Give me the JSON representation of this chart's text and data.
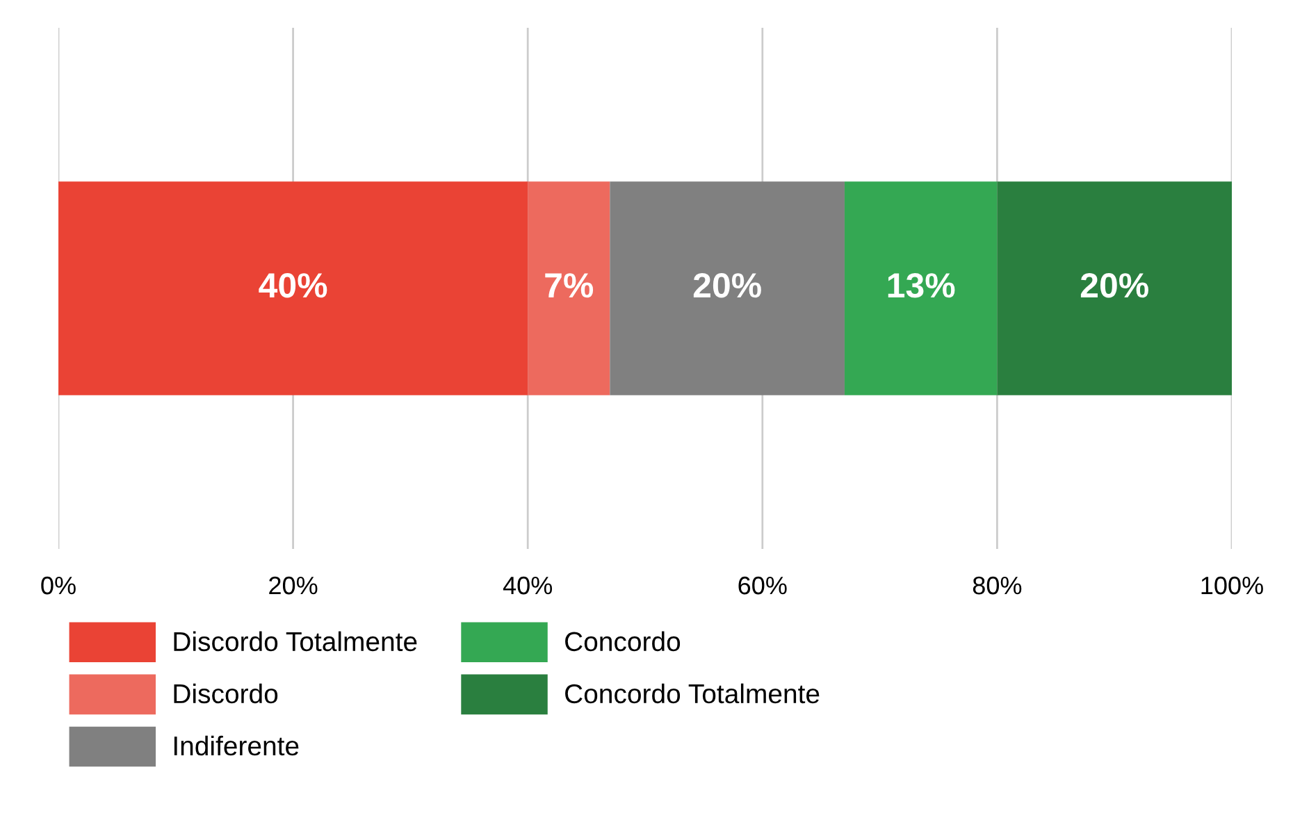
{
  "chart_data": {
    "type": "bar",
    "orientation": "horizontal",
    "stacked": true,
    "categories": [
      null
    ],
    "series": [
      {
        "name": "Discordo Totalmente",
        "color": "#ea4335",
        "values": [
          40
        ],
        "value_labels": [
          "40%"
        ]
      },
      {
        "name": "Discordo",
        "color": "#ed6a5e",
        "values": [
          7
        ],
        "value_labels": [
          "7%"
        ]
      },
      {
        "name": "Indiferente",
        "color": "#808080",
        "values": [
          20
        ],
        "value_labels": [
          "20%"
        ]
      },
      {
        "name": "Concordo",
        "color": "#34a853",
        "values": [
          13
        ],
        "value_labels": [
          "13%"
        ]
      },
      {
        "name": "Concordo Totalmente",
        "color": "#2a7f3f",
        "values": [
          20
        ],
        "value_labels": [
          "20%"
        ]
      }
    ],
    "xlim": [
      0,
      100
    ],
    "xticks": [
      {
        "value": 0,
        "label": "0%"
      },
      {
        "value": 20,
        "label": "20%"
      },
      {
        "value": 40,
        "label": "40%"
      },
      {
        "value": 60,
        "label": "60%"
      },
      {
        "value": 80,
        "label": "80%"
      },
      {
        "value": 100,
        "label": "100%"
      }
    ],
    "grid": "x",
    "legend": "bottom"
  }
}
